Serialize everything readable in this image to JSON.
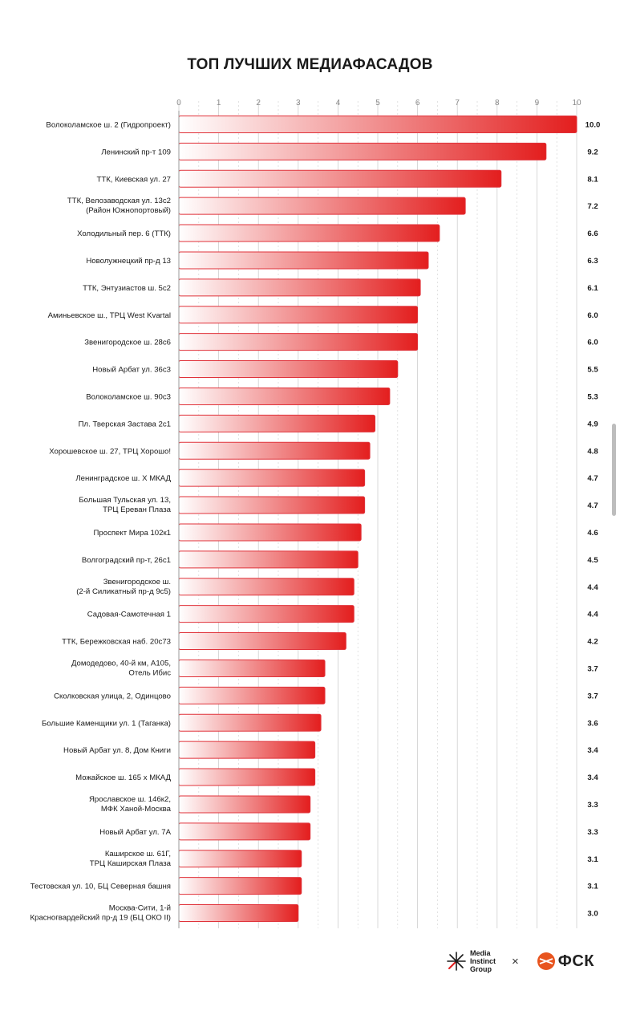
{
  "title": "ТОП ЛУЧШИХ МЕДИАФАСАДОВ",
  "chart_data": {
    "type": "bar",
    "orientation": "horizontal",
    "title": "ТОП ЛУЧШИХ МЕДИАФАСАДОВ",
    "xlim": [
      0,
      10
    ],
    "xticks": [
      "0",
      "1",
      "2",
      "3",
      "4",
      "5",
      "6",
      "7",
      "8",
      "9",
      "10"
    ],
    "grid": true,
    "categories": [
      [
        "Волоколамское ш. 2 (Гидропроект)"
      ],
      [
        "Ленинский пр-т 109"
      ],
      [
        "ТТК, Киевская ул. 27"
      ],
      [
        "ТТК, Велозаводская ул. 13с2",
        "(Район Южнопортовый)"
      ],
      [
        "Холодильный пер. 6 (ТТК)"
      ],
      [
        "Новолужнецкий пр-д 13"
      ],
      [
        "ТТК, Энтузиастов ш. 5с2"
      ],
      [
        "Аминьевское ш., ТРЦ West Kvartal"
      ],
      [
        "Звенигородское ш. 28с6"
      ],
      [
        "Новый Арбат ул. 36с3"
      ],
      [
        "Волоколамское ш. 90с3"
      ],
      [
        "Пл. Тверская Застава 2с1"
      ],
      [
        "Хорошевское ш. 27, ТРЦ Хорошо!"
      ],
      [
        "Ленинградское ш. Х МКАД"
      ],
      [
        "Большая Тульская ул. 13,",
        "ТРЦ Ереван Плаза"
      ],
      [
        "Проспект Мира 102к1"
      ],
      [
        "Волгоградский пр-т, 26с1"
      ],
      [
        "Звенигородское ш.",
        "(2-й Силикатный пр-д 9с5)"
      ],
      [
        "Садовая-Самотечная 1"
      ],
      [
        "ТТК, Бережковская наб. 20с73"
      ],
      [
        "Домодедово, 40-й км, А105,",
        "Отель Ибис"
      ],
      [
        "Сколковская улица, 2, Одинцово"
      ],
      [
        "Большие Каменщики ул. 1 (Таганка)"
      ],
      [
        "Новый Арбат ул. 8, Дом Книги"
      ],
      [
        "Можайское ш. 165 х МКАД"
      ],
      [
        "Ярославское ш. 146к2,",
        "МФК Ханой-Москва"
      ],
      [
        "Новый Арбат ул. 7А"
      ],
      [
        "Каширское ш. 61Г,",
        "ТРЦ Каширская Плаза"
      ],
      [
        "Тестовская ул. 10, БЦ Северная башня"
      ],
      [
        "Москва-Сити, 1-й",
        "Красногвардейский пр-д 19 (БЦ ОКО II)"
      ]
    ],
    "values": [
      10.0,
      9.23,
      8.1,
      7.2,
      6.55,
      6.27,
      6.07,
      6.0,
      6.0,
      5.5,
      5.3,
      4.93,
      4.8,
      4.67,
      4.67,
      4.58,
      4.5,
      4.4,
      4.4,
      4.2,
      3.67,
      3.67,
      3.57,
      3.42,
      3.42,
      3.3,
      3.3,
      3.08,
      3.08,
      3.0
    ],
    "value_labels": [
      "10.0",
      "9.2",
      "8.1",
      "7.2",
      "6.6",
      "6.3",
      "6.1",
      "6.0",
      "6.0",
      "5.5",
      "5.3",
      "4.9",
      "4.8",
      "4.7",
      "4.7",
      "4.6",
      "4.5",
      "4.4",
      "4.4",
      "4.2",
      "3.7",
      "3.7",
      "3.6",
      "3.4",
      "3.4",
      "3.3",
      "3.3",
      "3.1",
      "3.1",
      "3.0"
    ],
    "colors": {
      "bar_start": "#ffffff",
      "bar_end": "#e31e1e",
      "bar_stroke": "#e0323a"
    }
  },
  "footer": {
    "partner_logo_lines": [
      "Media",
      "Instinct",
      "Group"
    ],
    "separator": "×",
    "brand_logo_text": "ФСК"
  }
}
